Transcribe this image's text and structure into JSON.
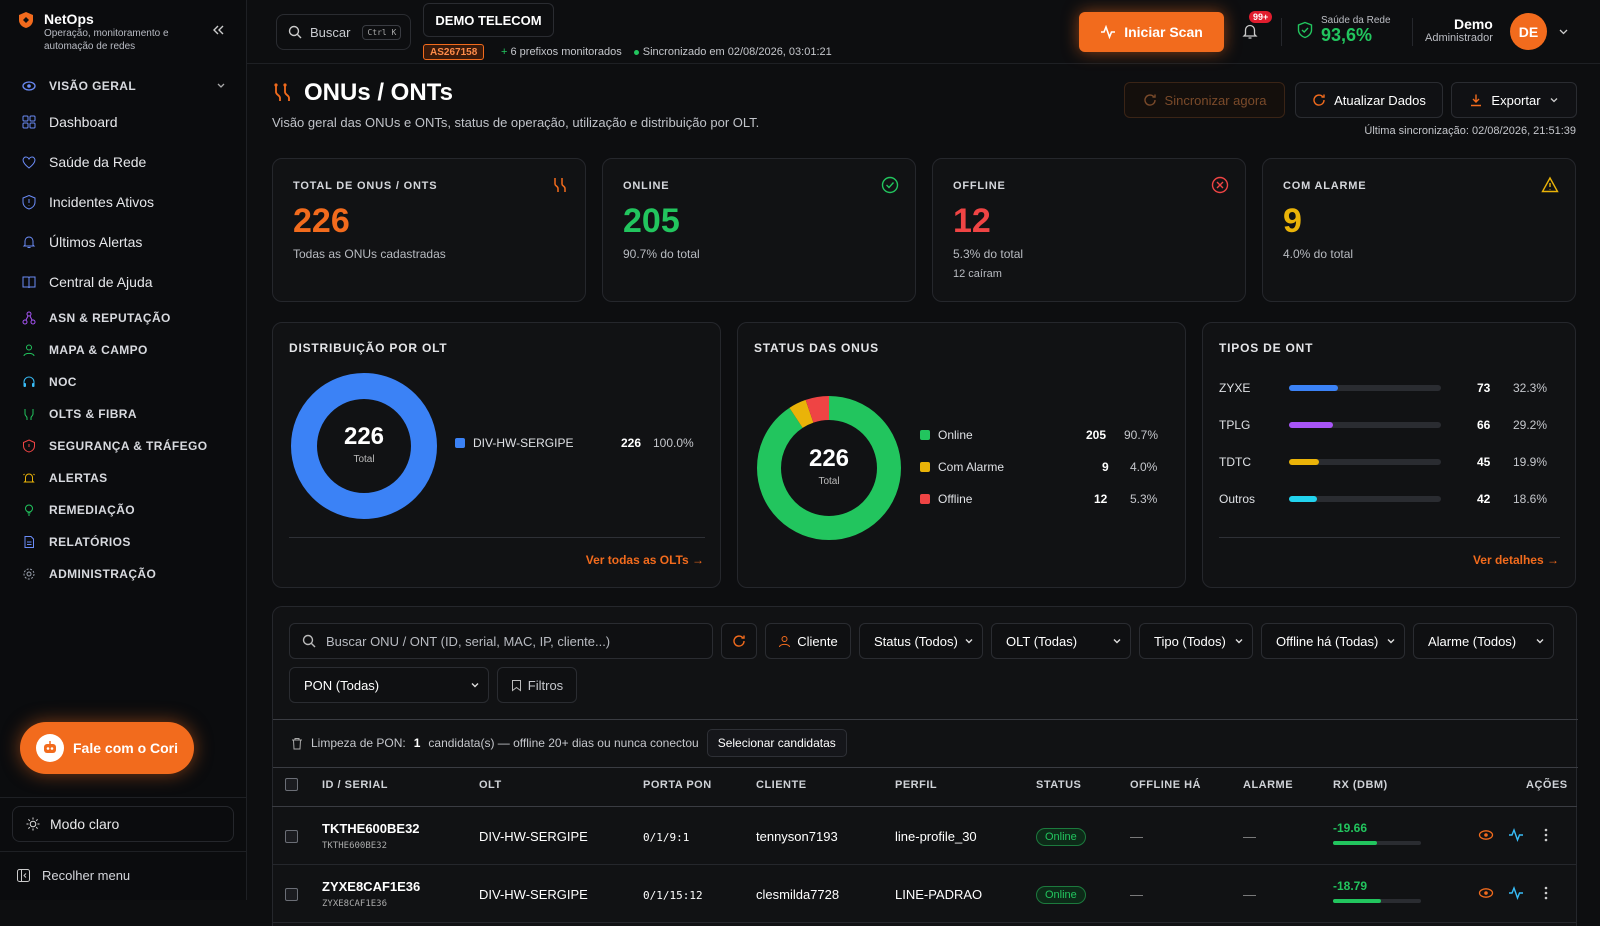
{
  "brand": {
    "name": "NetOps",
    "subtitle": "Operação, monitoramento e automação de redes"
  },
  "sidebar": {
    "overview": "VISÃO GERAL",
    "items": [
      "Dashboard",
      "Saúde da Rede",
      "Incidentes Ativos",
      "Últimos Alertas",
      "Central de Ajuda"
    ],
    "sections": [
      "ASN & REPUTAÇÃO",
      "MAPA & CAMPO",
      "NOC",
      "OLTS & FIBRA",
      "SEGURANÇA & TRÁFEGO",
      "ALERTAS",
      "REMEDIAÇÃO",
      "RELATÓRIOS",
      "ADMINISTRAÇÃO"
    ],
    "cori": "Fale com o Cori",
    "mode": "Modo claro",
    "collapse": "Recolher menu"
  },
  "topbar": {
    "search": "Buscar",
    "search_kbd": "Ctrl K",
    "tenant": "DEMO TELECOM",
    "asn": "AS267158",
    "prefixes": "6 prefixos monitorados",
    "synced": "Sincronizado em 02/08/2026, 03:01:21",
    "scan": "Iniciar Scan",
    "notif": "99+",
    "health_label": "Saúde da Rede",
    "health_value": "93,6%",
    "user_name": "Demo",
    "user_role": "Administrador",
    "avatar": "DE"
  },
  "page": {
    "title": "ONUs / ONTs",
    "subtitle": "Visão geral das ONUs e ONTs, status de operação, utilização e distribuição por OLT.",
    "btn_sync": "Sincronizar agora",
    "btn_refresh": "Atualizar Dados",
    "btn_export": "Exportar",
    "last_sync": "Última sincronização: 02/08/2026, 21:51:39"
  },
  "kpis": [
    {
      "title": "TOTAL DE ONUS / ONTS",
      "value": "226",
      "sub": "Todas as ONUs cadastradas",
      "sub2": "",
      "color": "#f26b1d"
    },
    {
      "title": "ONLINE",
      "value": "205",
      "sub": "90.7% do total",
      "sub2": "",
      "color": "#22c55e"
    },
    {
      "title": "OFFLINE",
      "value": "12",
      "sub": "5.3% do total",
      "sub2": "12 caíram",
      "color": "#ef4444"
    },
    {
      "title": "COM ALARME",
      "value": "9",
      "sub": "4.0% do total",
      "sub2": "",
      "color": "#eab308"
    }
  ],
  "olt_dist": {
    "title": "DISTRIBUIÇÃO POR OLT",
    "total": "226",
    "total_label": "Total",
    "items": [
      {
        "name": "DIV-HW-SERGIPE",
        "count": "226",
        "pct": "100.0%",
        "value": 226,
        "color": "#3b82f6"
      }
    ],
    "link": "Ver todas as OLTs →"
  },
  "status": {
    "title": "STATUS DAS ONUS",
    "total": "226",
    "total_label": "Total",
    "items": [
      {
        "name": "Online",
        "count": "205",
        "pct": "90.7%",
        "value": 205,
        "color": "#22c55e"
      },
      {
        "name": "Com Alarme",
        "count": "9",
        "pct": "4.0%",
        "value": 9,
        "color": "#eab308"
      },
      {
        "name": "Offline",
        "count": "12",
        "pct": "5.3%",
        "value": 12,
        "color": "#ef4444"
      }
    ]
  },
  "types": {
    "title": "TIPOS DE ONT",
    "items": [
      {
        "name": "ZYXE",
        "count": "73",
        "pct": "32.3%",
        "frac": 0.323,
        "color": "#3b82f6"
      },
      {
        "name": "TPLG",
        "count": "66",
        "pct": "29.2%",
        "frac": 0.292,
        "color": "#a855f7"
      },
      {
        "name": "TDTC",
        "count": "45",
        "pct": "19.9%",
        "frac": 0.199,
        "color": "#eab308"
      },
      {
        "name": "Outros",
        "count": "42",
        "pct": "18.6%",
        "frac": 0.186,
        "color": "#22d3ee"
      }
    ],
    "link": "Ver detalhes →"
  },
  "filters": {
    "search_placeholder": "Buscar ONU / ONT (ID, serial, MAC, IP, cliente...)",
    "cliente": "Cliente",
    "status": "Status (Todos)",
    "olt": "OLT (Todas)",
    "tipo": "Tipo (Todos)",
    "offline": "Offline há (Todas)",
    "alarme": "Alarme (Todos)",
    "pon": "PON (Todas)",
    "filtros": "Filtros"
  },
  "cleanup": {
    "label": "Limpeza de PON:",
    "count": "1",
    "text": "candidata(s) — offline 20+ dias ou nunca conectou",
    "btn": "Selecionar candidatas"
  },
  "table": {
    "headers": [
      "ID / SERIAL",
      "OLT",
      "PORTA PON",
      "CLIENTE",
      "PERFIL",
      "STATUS",
      "OFFLINE HÁ",
      "ALARME",
      "RX (DBM)",
      "AÇÕES"
    ],
    "rows": [
      {
        "id": "TKTHE600BE32",
        "serial": "TKTHE600BE32",
        "olt": "DIV-HW-SERGIPE",
        "pon": "0/1/9:1",
        "cliente": "tennyson7193",
        "perfil": "line-profile_30",
        "status": "Online",
        "offline": "—",
        "alarme": "—",
        "rx": "-19.66",
        "rx_frac": 0.5
      },
      {
        "id": "ZYXE8CAF1E36",
        "serial": "ZYXE8CAF1E36",
        "olt": "DIV-HW-SERGIPE",
        "pon": "0/1/15:12",
        "cliente": "clesmilda7728",
        "perfil": "LINE-PADRAO",
        "status": "Online",
        "offline": "—",
        "alarme": "—",
        "rx": "-18.79",
        "rx_frac": 0.55
      }
    ]
  }
}
